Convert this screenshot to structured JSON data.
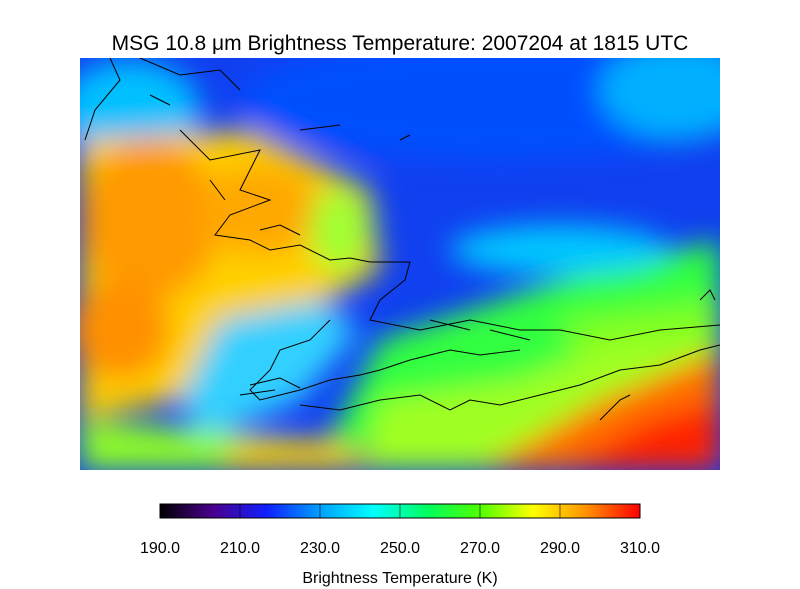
{
  "title": "MSG 10.8 μm Brightness Temperature: 2007204 at 1815 UTC",
  "colorbar": {
    "label": "Brightness Temperature (K)",
    "range": [
      190,
      310
    ],
    "colors": [
      "#000000",
      "#4a0090",
      "#1020ff",
      "#00a0ff",
      "#00ffff",
      "#00ff60",
      "#50ff00",
      "#ffff00",
      "#ff9000",
      "#ff0000"
    ],
    "ticks": [
      {
        "value": 190,
        "label": "190.0"
      },
      {
        "value": 210,
        "label": "210.0"
      },
      {
        "value": 230,
        "label": "230.0"
      },
      {
        "value": 250,
        "label": "250.0"
      },
      {
        "value": 270,
        "label": "270.0"
      },
      {
        "value": 290,
        "label": "290.0"
      },
      {
        "value": 310,
        "label": "310.0"
      }
    ]
  }
}
